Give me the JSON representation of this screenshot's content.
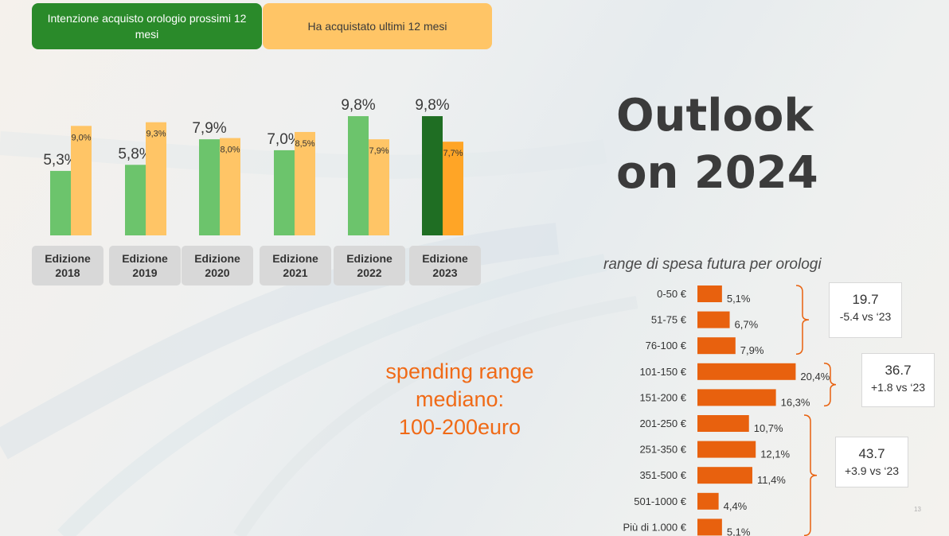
{
  "legend": {
    "intention_label": "Intenzione acquisto orologio prossimi 12 mesi",
    "purchased_label": "Ha acquistato ultimi 12 mesi"
  },
  "title": {
    "line1": "Outlook",
    "line2": "on 2024"
  },
  "range_title": "range di spesa futura per orologi",
  "spending": {
    "line1": "spending range",
    "line2": "mediano:",
    "line3": "100-200euro"
  },
  "colors": {
    "intention": "#6cc46c",
    "intention_latest": "#1f6e23",
    "purchased": "#ffc566",
    "purchased_latest": "#ffa526",
    "range_bar": "#e8610e",
    "bracket": "#e8610e"
  },
  "chart_data": [
    {
      "type": "bar",
      "categories": [
        "Edizione 2018",
        "Edizione 2019",
        "Edizione 2020",
        "Edizione 2021",
        "Edizione 2022",
        "Edizione 2023"
      ],
      "category_lines": [
        [
          "Edizione",
          "2018"
        ],
        [
          "Edizione",
          "2019"
        ],
        [
          "Edizione",
          "2020"
        ],
        [
          "Edizione",
          "2021"
        ],
        [
          "Edizione",
          "2022"
        ],
        [
          "Edizione",
          "2023"
        ]
      ],
      "series": [
        {
          "name": "Intenzione acquisto orologio prossimi 12 mesi",
          "values": [
            5.3,
            5.8,
            7.9,
            7.0,
            9.8,
            9.8
          ],
          "labels": [
            "5,3%",
            "5,8%",
            "7,9%",
            "7,0%",
            "9,8%",
            "9,8%"
          ]
        },
        {
          "name": "Ha acquistato ultimi 12 mesi",
          "values": [
            9.0,
            9.3,
            8.0,
            8.5,
            7.9,
            7.7
          ],
          "labels": [
            "9,0%",
            "9,3%",
            "8,0%",
            "8,5%",
            "7,9%",
            "7,7%"
          ]
        }
      ],
      "ylim": [
        0,
        10.5
      ],
      "grid": false,
      "legend": "top"
    },
    {
      "type": "bar",
      "orientation": "horizontal",
      "title": "range di spesa futura per orologi",
      "categories": [
        "0-50 €",
        "51-75 €",
        "76-100 €",
        "101-150 €",
        "151-200 €",
        "201-250 €",
        "251-350 €",
        "351-500 €",
        "501-1000 €",
        "Più di 1.000 €"
      ],
      "values": [
        5.1,
        6.7,
        7.9,
        20.4,
        16.3,
        10.7,
        12.1,
        11.4,
        4.4,
        5.1
      ],
      "labels": [
        "5,1%",
        "6,7%",
        "7,9%",
        "20,4%",
        "16,3%",
        "10,7%",
        "12,1%",
        "11,4%",
        "4,4%",
        "5,1%"
      ],
      "grid": false,
      "groups": [
        {
          "value": "19.7",
          "delta": "-5.4 vs ‘23",
          "from": 0,
          "to": 2
        },
        {
          "value": "36.7",
          "delta": "+1.8 vs ‘23",
          "from": 3,
          "to": 4
        },
        {
          "value": "43.7",
          "delta": "+3.9 vs ‘23",
          "from": 5,
          "to": 9
        }
      ]
    }
  ],
  "page_number": "13"
}
